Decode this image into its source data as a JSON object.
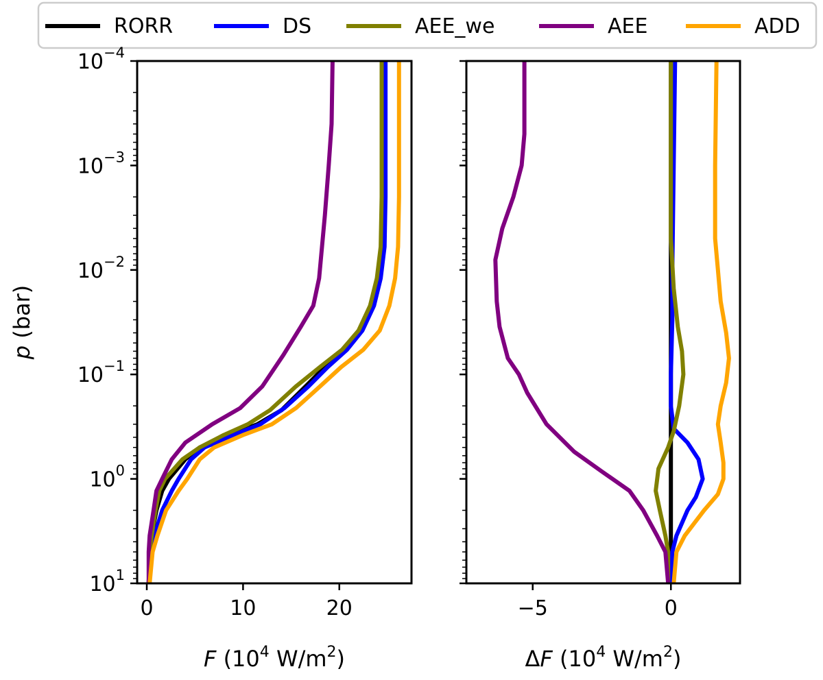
{
  "chart_data": {
    "type": "line",
    "legend": {
      "placement": "top",
      "entries": [
        {
          "name": "RORR",
          "color": "#000000"
        },
        {
          "name": "DS",
          "color": "#0000ff"
        },
        {
          "name": "AEE_we",
          "color": "#808000"
        },
        {
          "name": "AEE",
          "color": "#800080"
        },
        {
          "name": "ADD",
          "color": "#ffa500"
        }
      ]
    },
    "shared_y": {
      "label_italic": "p",
      "label_rest": " (bar)",
      "scale": "log",
      "ylim": [
        10,
        0.0001
      ],
      "ticks": [
        {
          "base": "10",
          "exp": "−4",
          "value": 0.0001
        },
        {
          "base": "10",
          "exp": "−3",
          "value": 0.001
        },
        {
          "base": "10",
          "exp": "−2",
          "value": 0.01
        },
        {
          "base": "10",
          "exp": "−1",
          "value": 0.1
        },
        {
          "base": "10",
          "exp": "0",
          "value": 1
        },
        {
          "base": "10",
          "exp": "1",
          "value": 10
        }
      ]
    },
    "panels": [
      {
        "id": "flux",
        "xlabel_italic": "F",
        "xlabel_prefix": "",
        "xlabel_rest": " (10",
        "xlabel_exp": "4",
        "xlabel_unit": " W/m",
        "xlabel_unit_exp": "2",
        "xlabel_close": ")",
        "xlim": [
          -1,
          27.5
        ],
        "xticks": [
          {
            "label": "0",
            "value": 0
          },
          {
            "label": "10",
            "value": 10
          },
          {
            "label": "20",
            "value": 20
          }
        ],
        "series": [
          {
            "name": "RORR",
            "points": [
              [
                0.2,
                10
              ],
              [
                0.3,
                5
              ],
              [
                0.5,
                3.5
              ],
              [
                1.0,
                2
              ],
              [
                1.6,
                1.3
              ],
              [
                2.3,
                1
              ],
              [
                4.0,
                0.65
              ],
              [
                5.5,
                0.5
              ],
              [
                8.5,
                0.38
              ],
              [
                11.5,
                0.3
              ],
              [
                14.0,
                0.22
              ],
              [
                16.5,
                0.13
              ],
              [
                18.5,
                0.085
              ],
              [
                20.5,
                0.058
              ],
              [
                22.3,
                0.038
              ],
              [
                23.5,
                0.022
              ],
              [
                24.2,
                0.012
              ],
              [
                24.5,
                0.006
              ],
              [
                24.6,
                0.002
              ],
              [
                24.6,
                0.0001
              ]
            ]
          },
          {
            "name": "DS",
            "points": [
              [
                0.2,
                10
              ],
              [
                0.4,
                5
              ],
              [
                0.8,
                3.5
              ],
              [
                1.6,
                2
              ],
              [
                2.6,
                1.3
              ],
              [
                3.3,
                1
              ],
              [
                4.6,
                0.65
              ],
              [
                6.0,
                0.5
              ],
              [
                9.0,
                0.38
              ],
              [
                11.8,
                0.3
              ],
              [
                14.3,
                0.21
              ],
              [
                16.8,
                0.13
              ],
              [
                18.8,
                0.085
              ],
              [
                20.8,
                0.058
              ],
              [
                22.4,
                0.038
              ],
              [
                23.6,
                0.022
              ],
              [
                24.3,
                0.012
              ],
              [
                24.7,
                0.006
              ],
              [
                24.8,
                0.002
              ],
              [
                24.8,
                0.0001
              ]
            ]
          },
          {
            "name": "AEE_we",
            "points": [
              [
                0.2,
                10
              ],
              [
                0.3,
                5
              ],
              [
                0.5,
                3.5
              ],
              [
                0.9,
                2
              ],
              [
                1.3,
                1.3
              ],
              [
                1.9,
                1
              ],
              [
                3.7,
                0.65
              ],
              [
                5.5,
                0.5
              ],
              [
                8.0,
                0.38
              ],
              [
                10.5,
                0.3
              ],
              [
                12.8,
                0.22
              ],
              [
                15.5,
                0.13
              ],
              [
                18.0,
                0.085
              ],
              [
                20.3,
                0.058
              ],
              [
                22.0,
                0.038
              ],
              [
                23.2,
                0.022
              ],
              [
                23.9,
                0.012
              ],
              [
                24.3,
                0.006
              ],
              [
                24.4,
                0.002
              ],
              [
                24.4,
                0.0001
              ]
            ]
          },
          {
            "name": "AEE",
            "points": [
              [
                0.2,
                10
              ],
              [
                0.2,
                5
              ],
              [
                0.3,
                3.5
              ],
              [
                0.7,
                2
              ],
              [
                1.0,
                1.3
              ],
              [
                1.6,
                1
              ],
              [
                2.6,
                0.65
              ],
              [
                4.0,
                0.45
              ],
              [
                6.8,
                0.3
              ],
              [
                9.7,
                0.21
              ],
              [
                12.0,
                0.13
              ],
              [
                14.2,
                0.065
              ],
              [
                16.0,
                0.035
              ],
              [
                17.3,
                0.022
              ],
              [
                17.9,
                0.012
              ],
              [
                18.2,
                0.006
              ],
              [
                18.5,
                0.003
              ],
              [
                18.9,
                0.001
              ],
              [
                19.2,
                0.0004
              ],
              [
                19.3,
                0.0001
              ]
            ]
          },
          {
            "name": "ADD",
            "points": [
              [
                0.3,
                10
              ],
              [
                0.6,
                5
              ],
              [
                1.1,
                3.5
              ],
              [
                2.0,
                2
              ],
              [
                3.3,
                1.3
              ],
              [
                4.2,
                1
              ],
              [
                5.5,
                0.65
              ],
              [
                7.0,
                0.5
              ],
              [
                10.0,
                0.38
              ],
              [
                13.0,
                0.3
              ],
              [
                15.5,
                0.21
              ],
              [
                18.0,
                0.13
              ],
              [
                20.2,
                0.085
              ],
              [
                22.5,
                0.058
              ],
              [
                24.2,
                0.038
              ],
              [
                25.2,
                0.022
              ],
              [
                25.8,
                0.012
              ],
              [
                26.1,
                0.006
              ],
              [
                26.2,
                0.002
              ],
              [
                26.2,
                0.0001
              ]
            ]
          }
        ]
      },
      {
        "id": "delta",
        "xlabel_italic": "F",
        "xlabel_prefix": "Δ",
        "xlabel_rest": " (10",
        "xlabel_exp": "4",
        "xlabel_unit": " W/m",
        "xlabel_unit_exp": "2",
        "xlabel_close": ")",
        "xlim": [
          -7.4,
          2.5
        ],
        "xticks": [
          {
            "label": "−5",
            "value": -5
          },
          {
            "label": "0",
            "value": 0
          }
        ],
        "series": [
          {
            "name": "RORR",
            "points": [
              [
                0,
                10
              ],
              [
                0,
                0.0001
              ]
            ]
          },
          {
            "name": "DS",
            "points": [
              [
                0,
                10
              ],
              [
                0.05,
                5
              ],
              [
                0.2,
                3.5
              ],
              [
                0.6,
                2
              ],
              [
                0.9,
                1.5
              ],
              [
                1.15,
                1
              ],
              [
                1.0,
                0.65
              ],
              [
                0.6,
                0.45
              ],
              [
                0.1,
                0.33
              ],
              [
                0.0,
                0.2
              ],
              [
                0.0,
                0.1
              ],
              [
                0.05,
                0.03
              ],
              [
                0.05,
                0.01
              ],
              [
                0.1,
                0.001
              ],
              [
                0.15,
                0.0001
              ]
            ]
          },
          {
            "name": "AEE_we",
            "points": [
              [
                -0.1,
                10
              ],
              [
                -0.1,
                5
              ],
              [
                -0.2,
                3.5
              ],
              [
                -0.4,
                2
              ],
              [
                -0.55,
                1.3
              ],
              [
                -0.45,
                0.8
              ],
              [
                -0.1,
                0.5
              ],
              [
                0.1,
                0.35
              ],
              [
                0.3,
                0.2
              ],
              [
                0.45,
                0.1
              ],
              [
                0.4,
                0.06
              ],
              [
                0.25,
                0.035
              ],
              [
                0.1,
                0.015
              ],
              [
                0.0,
                0.005
              ],
              [
                0.0,
                0.0001
              ]
            ]
          },
          {
            "name": "AEE",
            "points": [
              [
                -0.1,
                10
              ],
              [
                -0.2,
                5
              ],
              [
                -0.5,
                3.5
              ],
              [
                -1.0,
                2
              ],
              [
                -1.5,
                1.3
              ],
              [
                -2.5,
                0.85
              ],
              [
                -3.5,
                0.55
              ],
              [
                -4.5,
                0.3
              ],
              [
                -5.2,
                0.15
              ],
              [
                -5.5,
                0.1
              ],
              [
                -5.9,
                0.07
              ],
              [
                -6.2,
                0.035
              ],
              [
                -6.3,
                0.02
              ],
              [
                -6.35,
                0.008
              ],
              [
                -6.1,
                0.004
              ],
              [
                -5.7,
                0.002
              ],
              [
                -5.4,
                0.001
              ],
              [
                -5.3,
                0.0005
              ],
              [
                -5.3,
                0.0001
              ]
            ]
          },
          {
            "name": "ADD",
            "points": [
              [
                0.1,
                10
              ],
              [
                0.2,
                5
              ],
              [
                0.5,
                3.5
              ],
              [
                1.2,
                2
              ],
              [
                1.7,
                1.4
              ],
              [
                1.9,
                1
              ],
              [
                1.9,
                0.7
              ],
              [
                1.8,
                0.45
              ],
              [
                1.7,
                0.3
              ],
              [
                1.8,
                0.2
              ],
              [
                2.0,
                0.12
              ],
              [
                2.1,
                0.07
              ],
              [
                2.0,
                0.04
              ],
              [
                1.8,
                0.02
              ],
              [
                1.7,
                0.01
              ],
              [
                1.6,
                0.005
              ],
              [
                1.6,
                0.001
              ],
              [
                1.65,
                0.0001
              ]
            ]
          }
        ]
      }
    ]
  }
}
